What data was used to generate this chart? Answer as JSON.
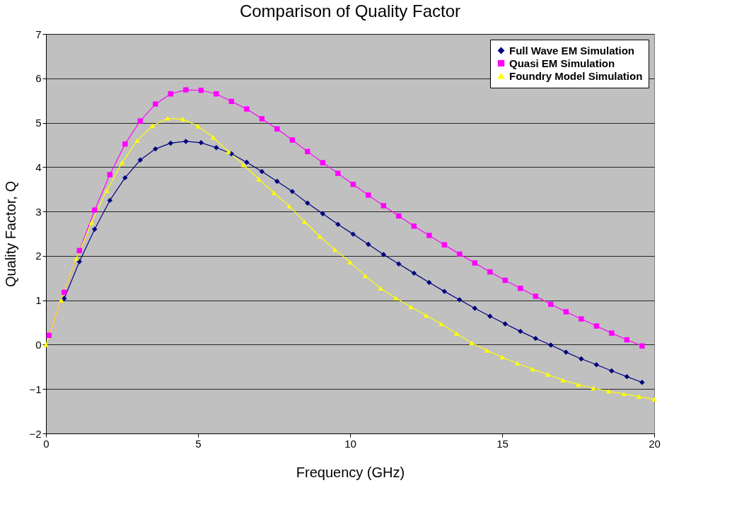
{
  "chart_data": {
    "type": "line",
    "title": "Comparison of Quality Factor",
    "xlabel": "Frequency (GHz)",
    "ylabel": "Quality Factor, Q",
    "xlim": [
      0,
      20
    ],
    "xticks": [
      0,
      5,
      10,
      15,
      20
    ],
    "ylim": [
      -2,
      7
    ],
    "yticks": [
      -2,
      -1,
      0,
      1,
      2,
      3,
      4,
      5,
      6,
      7
    ],
    "grid": "y",
    "legend": "top right",
    "series": [
      {
        "name": "Full Wave EM Simulation",
        "color": "#000080",
        "marker": "diamond",
        "x": [
          0.6,
          1.1,
          1.6,
          2.1,
          2.6,
          3.1,
          3.6,
          4.1,
          4.6,
          5.1,
          5.6,
          6.1,
          6.6,
          7.1,
          7.6,
          8.1,
          8.6,
          9.1,
          9.6,
          10.1,
          10.6,
          11.1,
          11.6,
          12.1,
          12.6,
          13.1,
          13.6,
          14.1,
          14.6,
          15.1,
          15.6,
          16.1,
          16.6,
          17.1,
          17.6,
          18.1,
          18.6,
          19.1,
          19.6
        ],
        "values": [
          1.04,
          1.87,
          2.6,
          3.25,
          3.76,
          4.16,
          4.41,
          4.54,
          4.58,
          4.55,
          4.44,
          4.3,
          4.11,
          3.9,
          3.68,
          3.45,
          3.19,
          2.95,
          2.71,
          2.49,
          2.26,
          2.03,
          1.82,
          1.61,
          1.4,
          1.2,
          1.01,
          0.82,
          0.64,
          0.47,
          0.3,
          0.14,
          -0.01,
          -0.17,
          -0.32,
          -0.45,
          -0.59,
          -0.72,
          -0.85
        ]
      },
      {
        "name": "Quasi EM Simulation",
        "color": "#ff00ff",
        "marker": "square",
        "x": [
          0.1,
          0.6,
          1.1,
          1.6,
          2.1,
          2.6,
          3.1,
          3.6,
          4.1,
          4.6,
          5.1,
          5.6,
          6.1,
          6.6,
          7.1,
          7.6,
          8.1,
          8.6,
          9.1,
          9.6,
          10.1,
          10.6,
          11.1,
          11.6,
          12.1,
          12.6,
          13.1,
          13.6,
          14.1,
          14.6,
          15.1,
          15.6,
          16.1,
          16.6,
          17.1,
          17.6,
          18.1,
          18.6,
          19.1,
          19.6
        ],
        "values": [
          0.21,
          1.18,
          2.12,
          3.03,
          3.83,
          4.52,
          5.04,
          5.42,
          5.65,
          5.74,
          5.73,
          5.65,
          5.48,
          5.31,
          5.09,
          4.86,
          4.61,
          4.35,
          4.1,
          3.86,
          3.61,
          3.37,
          3.13,
          2.9,
          2.67,
          2.46,
          2.25,
          2.04,
          1.84,
          1.64,
          1.45,
          1.27,
          1.09,
          0.91,
          0.74,
          0.58,
          0.42,
          0.26,
          0.11,
          -0.03
        ]
      },
      {
        "name": "Foundry Model Simulation",
        "color": "#ffff00",
        "marker": "triangle",
        "x": [
          0,
          0.5,
          1,
          1.5,
          2,
          2.5,
          3,
          3.5,
          4,
          4.5,
          5,
          5.5,
          6,
          6.5,
          7,
          7.5,
          8,
          8.5,
          9,
          9.5,
          10,
          10.5,
          11,
          11.5,
          12,
          12.5,
          13,
          13.5,
          14,
          14.5,
          15,
          15.5,
          16,
          16.5,
          17,
          17.5,
          18,
          18.5,
          19,
          19.5,
          20
        ],
        "values": [
          0,
          1.0,
          1.94,
          2.75,
          3.47,
          4.1,
          4.6,
          4.93,
          5.1,
          5.08,
          4.92,
          4.67,
          4.35,
          4.05,
          3.73,
          3.42,
          3.12,
          2.77,
          2.44,
          2.14,
          1.86,
          1.55,
          1.27,
          1.05,
          0.85,
          0.66,
          0.47,
          0.25,
          0.04,
          -0.13,
          -0.28,
          -0.42,
          -0.55,
          -0.67,
          -0.8,
          -0.9,
          -0.98,
          -1.05,
          -1.11,
          -1.17,
          -1.23
        ]
      }
    ]
  }
}
